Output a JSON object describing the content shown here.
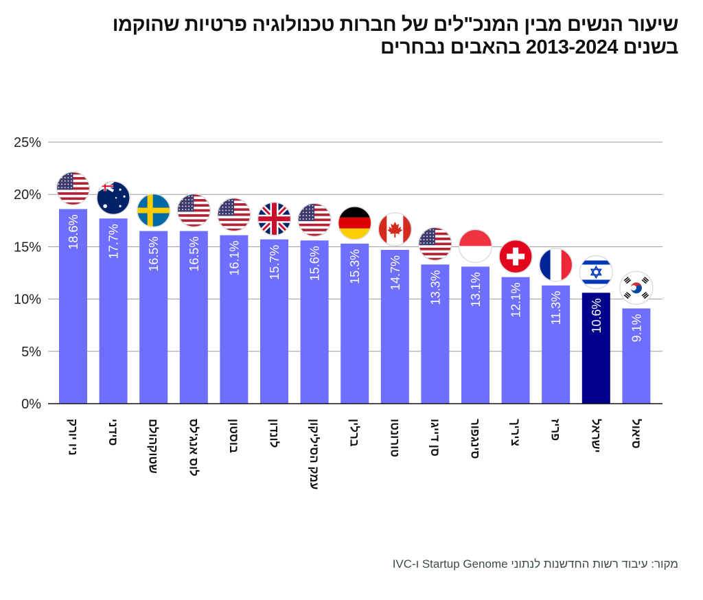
{
  "header": {
    "title_line1": "שיעור הנשים מבין המנכ\"לים של חברות טכנולוגיה פרטיות שהוקמו",
    "title_line2": "בשנים 2013-2024 בהאבים נבחרים"
  },
  "footer": {
    "source": "מקור: עיבוד רשות החדשנות לנתוני Startup Genome ו-IVC"
  },
  "colors": {
    "bar": "#6e6eff",
    "highlight_bar": "#00008b",
    "grid": "#9a9a9a",
    "axis": "#111111"
  },
  "chart_data": {
    "type": "bar",
    "title": "שיעור הנשים מבין המנכ\"לים של חברות טכנולוגיה פרטיות שהוקמו בשנים 2013-2024 בהאבים נבחרים",
    "xlabel": "",
    "ylabel": "",
    "ylim": [
      0,
      25
    ],
    "yticks": [
      0,
      5,
      10,
      15,
      20,
      25
    ],
    "ytick_labels": [
      "0%",
      "5%",
      "10%",
      "15%",
      "20%",
      "25%"
    ],
    "grid": true,
    "legend": "none",
    "categories": [
      "ניו יורק",
      "סידני",
      "שטוקהולם",
      "לוס אנג'לס",
      "בוסטון",
      "לונדון",
      "עמק הסיליקון",
      "ברלין",
      "טורונטו",
      "סן דייגו",
      "סינגפור",
      "ציריך",
      "פריז",
      "ישראל",
      "סיאול"
    ],
    "values": [
      18.6,
      17.7,
      16.5,
      16.5,
      16.1,
      15.7,
      15.6,
      15.3,
      14.7,
      13.3,
      13.1,
      12.1,
      11.3,
      10.6,
      9.1
    ],
    "value_labels": [
      "18.6%",
      "17.7%",
      "16.5%",
      "16.5%",
      "16.1%",
      "15.7%",
      "15.6%",
      "15.3%",
      "14.7%",
      "13.3%",
      "13.1%",
      "12.1%",
      "11.3%",
      "10.6%",
      "9.1%"
    ],
    "flags": [
      "usa-flag",
      "australia-flag",
      "sweden-flag",
      "usa-flag",
      "usa-flag",
      "uk-flag",
      "usa-flag",
      "germany-flag",
      "canada-flag",
      "usa-flag",
      "singapore-flag",
      "switzerland-flag",
      "france-flag",
      "israel-flag",
      "south-korea-flag"
    ],
    "highlight": "ישראל"
  }
}
